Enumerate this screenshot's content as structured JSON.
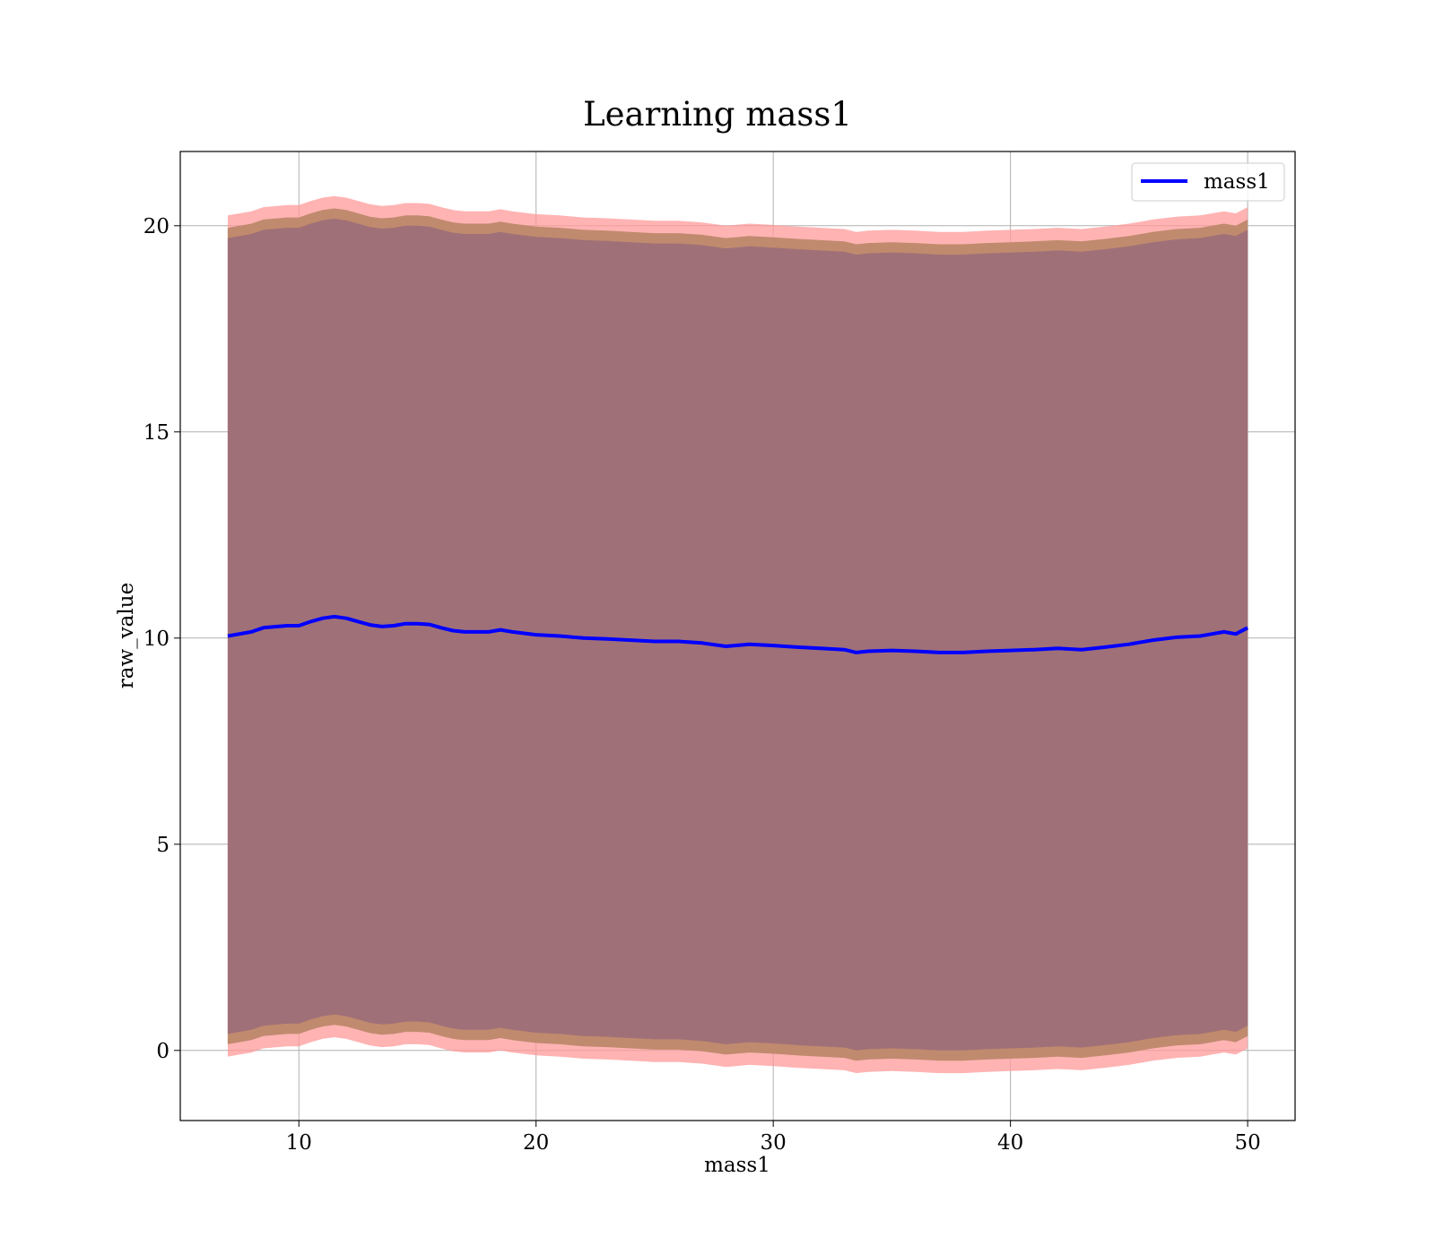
{
  "chart_data": {
    "type": "line",
    "title": "Learning mass1",
    "xlabel": "mass1",
    "ylabel": "raw_value",
    "xlim": [
      5,
      52
    ],
    "ylim": [
      -1.7,
      21.8
    ],
    "xticks": [
      10,
      20,
      30,
      40,
      50
    ],
    "yticks": [
      0,
      5,
      10,
      15,
      20
    ],
    "grid": true,
    "legend_position": "top-right",
    "colors": {
      "line": "#0000ff",
      "outer_band": "#ff9999",
      "middle_band": "#c08a6e",
      "inner_band": "#a07078",
      "grid": "#b0b0b0"
    },
    "series": [
      {
        "name": "mass1",
        "x": [
          7.0,
          8.0,
          8.5,
          9.5,
          10.0,
          10.5,
          11.0,
          11.5,
          12.0,
          12.5,
          13.0,
          13.5,
          14.0,
          14.5,
          15.0,
          15.5,
          16.0,
          16.5,
          17.0,
          18.0,
          18.5,
          19.0,
          20.0,
          21.0,
          22.0,
          23.0,
          24.0,
          25.0,
          26.0,
          27.0,
          28.0,
          29.0,
          30.0,
          31.0,
          32.0,
          33.0,
          33.5,
          34.0,
          35.0,
          36.0,
          37.0,
          38.0,
          39.0,
          40.0,
          41.0,
          42.0,
          43.0,
          44.0,
          45.0,
          46.0,
          47.0,
          48.0,
          48.5,
          49.0,
          49.5,
          50.0
        ],
        "y": [
          10.05,
          10.15,
          10.25,
          10.3,
          10.3,
          10.4,
          10.48,
          10.52,
          10.48,
          10.4,
          10.32,
          10.28,
          10.3,
          10.35,
          10.35,
          10.33,
          10.25,
          10.18,
          10.15,
          10.15,
          10.2,
          10.15,
          10.08,
          10.05,
          10.0,
          9.98,
          9.95,
          9.92,
          9.92,
          9.88,
          9.8,
          9.85,
          9.82,
          9.78,
          9.75,
          9.72,
          9.65,
          9.68,
          9.7,
          9.68,
          9.65,
          9.65,
          9.68,
          9.7,
          9.72,
          9.75,
          9.72,
          9.78,
          9.85,
          9.95,
          10.02,
          10.05,
          10.1,
          10.15,
          10.1,
          10.25
        ]
      }
    ],
    "band_offsets": {
      "outer_upper": 10.2,
      "middle_upper": 9.9,
      "inner_upper": 9.65,
      "inner_lower": -9.65,
      "middle_lower": -9.9,
      "outer_lower": -10.2
    }
  }
}
